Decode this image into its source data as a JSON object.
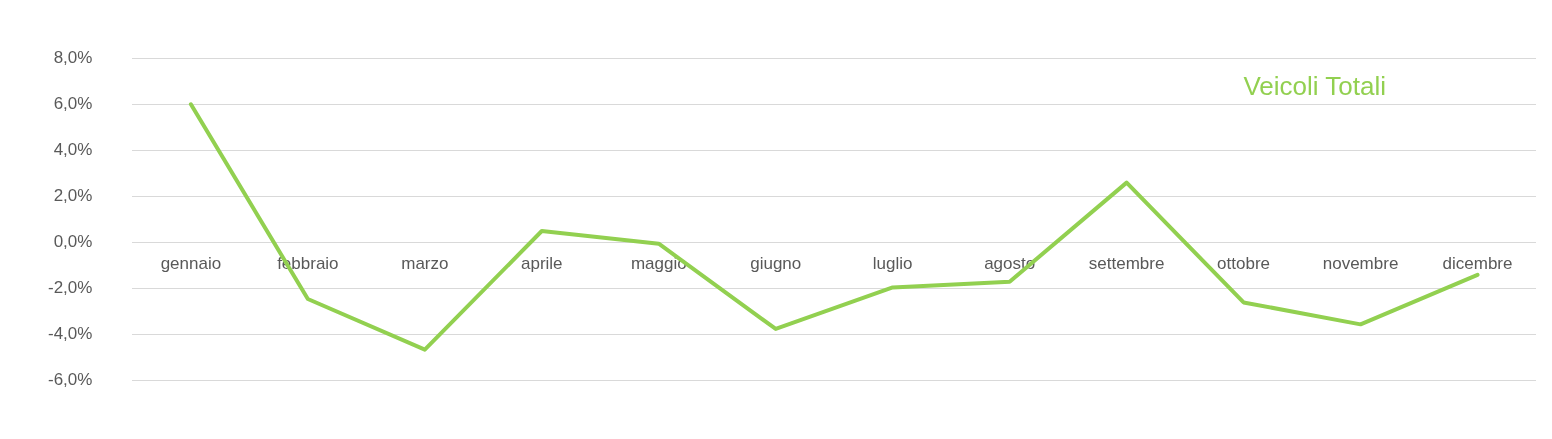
{
  "chart_data": {
    "type": "line",
    "categories": [
      "gennaio",
      "febbraio",
      "marzo",
      "aprile",
      "maggio",
      "giugno",
      "luglio",
      "agosto",
      "settembre",
      "ottobre",
      "novembre",
      "dicembre"
    ],
    "series": [
      {
        "name": "Veicoli Totali",
        "color": "#92d050",
        "values": [
          6.0,
          -2.45,
          -4.65,
          0.5,
          -0.05,
          -3.75,
          -1.95,
          -1.7,
          2.6,
          -2.6,
          -3.55,
          -1.4
        ]
      }
    ],
    "ylim": [
      -6,
      8
    ],
    "yticks": [
      {
        "value": -6,
        "label": "-6,0%"
      },
      {
        "value": -4,
        "label": "-4,0%"
      },
      {
        "value": -2,
        "label": "-2,0%"
      },
      {
        "value": 0,
        "label": "0,0%"
      },
      {
        "value": 2,
        "label": "2,0%"
      },
      {
        "value": 4,
        "label": "4,0%"
      },
      {
        "value": 6,
        "label": "6,0%"
      },
      {
        "value": 8,
        "label": "8,0%"
      }
    ],
    "grid": "y",
    "legend": "top right",
    "marker": "none",
    "line_style": "solid"
  }
}
